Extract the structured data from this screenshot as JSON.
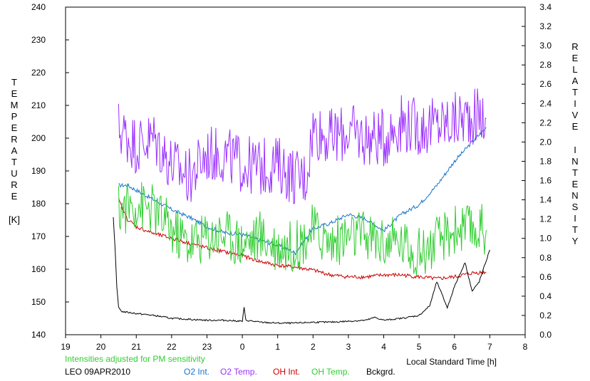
{
  "chart_data": {
    "type": "line",
    "x_range": [
      19,
      8
    ],
    "x_ticks": [
      "19",
      "20",
      "21",
      "22",
      "23",
      "0",
      "1",
      "2",
      "3",
      "4",
      "5",
      "6",
      "7",
      "8"
    ],
    "x_label": "Local Standard Time [h]",
    "left_axis": {
      "label_letters": [
        "T",
        "E",
        "M",
        "P",
        "E",
        "R",
        "A",
        "T",
        "U",
        "R",
        "E"
      ],
      "unit": "[K]",
      "range": [
        140,
        240
      ],
      "ticks": [
        "140",
        "150",
        "160",
        "170",
        "180",
        "190",
        "200",
        "210",
        "220",
        "230",
        "240"
      ]
    },
    "right_axis": {
      "label_letters_1": [
        "R",
        "E",
        "L",
        "A",
        "T",
        "I",
        "V",
        "E"
      ],
      "label_letters_2": [
        "I",
        "N",
        "T",
        "E",
        "N",
        "S",
        "I",
        "T",
        "Y"
      ],
      "range": [
        0.0,
        3.4
      ],
      "ticks": [
        "0.0",
        "0.2",
        "0.4",
        "0.6",
        "0.8",
        "1.0",
        "1.2",
        "1.4",
        "1.6",
        "1.8",
        "2.0",
        "2.2",
        "2.4",
        "2.6",
        "2.8",
        "3.0",
        "3.2",
        "3.4"
      ]
    },
    "note": "Intensities adjusted for PM sensitivity",
    "station": "LEO 09APR2010",
    "series": [
      {
        "name": "O2 Int.",
        "axis": "right",
        "color": "#1874cd",
        "x": [
          20.5,
          20.75,
          21.0,
          21.5,
          22.0,
          22.5,
          23.0,
          23.5,
          24.0,
          24.5,
          25.0,
          25.5,
          26.0,
          26.5,
          27.0,
          27.5,
          28.0,
          28.5,
          29.0,
          29.5,
          30.0,
          30.5,
          30.9
        ],
        "y": [
          1.55,
          1.55,
          1.5,
          1.4,
          1.3,
          1.22,
          1.12,
          1.06,
          1.04,
          0.98,
          0.93,
          0.85,
          1.1,
          1.16,
          1.25,
          1.2,
          1.08,
          1.25,
          1.35,
          1.55,
          1.8,
          2.0,
          2.15
        ]
      },
      {
        "name": "O2 Temp.",
        "axis": "left",
        "color": "#9b30ff",
        "x": [
          20.5,
          21.0,
          21.5,
          22.0,
          22.5,
          23.0,
          23.5,
          24.0,
          24.5,
          25.0,
          25.5,
          25.8,
          26.0,
          26.5,
          27.0,
          27.5,
          28.0,
          28.5,
          29.0,
          29.5,
          30.0,
          30.5,
          30.9
        ],
        "y": [
          203,
          198,
          200,
          192,
          188,
          195,
          195,
          192,
          191,
          192,
          188,
          188,
          203,
          200,
          202,
          200,
          200,
          205,
          203,
          204,
          205,
          207,
          206
        ]
      },
      {
        "name": "OH Int.",
        "axis": "right",
        "color": "#cd0000",
        "x": [
          20.5,
          20.75,
          21.0,
          21.5,
          22.0,
          22.5,
          23.0,
          23.5,
          24.0,
          24.5,
          25.0,
          25.5,
          26.0,
          26.5,
          27.0,
          27.5,
          28.0,
          28.5,
          29.0,
          29.5,
          30.0,
          30.5,
          30.9
        ],
        "y": [
          1.4,
          1.2,
          1.12,
          1.05,
          1.0,
          0.95,
          0.9,
          0.86,
          0.82,
          0.76,
          0.72,
          0.7,
          0.67,
          0.62,
          0.6,
          0.6,
          0.62,
          0.62,
          0.6,
          0.58,
          0.6,
          0.64,
          0.65
        ]
      },
      {
        "name": "OH Temp.",
        "axis": "left",
        "color": "#32cd32",
        "x": [
          20.5,
          21.0,
          21.5,
          22.0,
          22.5,
          23.0,
          23.5,
          24.0,
          24.5,
          25.0,
          25.5,
          26.0,
          26.5,
          27.0,
          27.5,
          28.0,
          28.5,
          29.0,
          29.5,
          30.0,
          30.5,
          30.9
        ],
        "y": [
          178,
          180,
          178,
          172,
          168,
          170,
          171,
          168,
          170,
          167,
          167,
          172,
          168,
          170,
          170,
          168,
          168,
          165,
          168,
          172,
          172,
          172
        ]
      },
      {
        "name": "Bckgrd.",
        "axis": "right",
        "color": "#000000",
        "x": [
          20.35,
          20.4,
          20.45,
          20.5,
          20.6,
          21.0,
          21.5,
          22.0,
          22.5,
          23.0,
          23.5,
          24.0,
          24.05,
          24.1,
          24.5,
          25.0,
          25.5,
          26.0,
          26.5,
          27.0,
          27.5,
          27.75,
          28.0,
          28.5,
          29.0,
          29.3,
          29.5,
          29.8,
          30.0,
          30.3,
          30.5,
          30.7,
          31.0
        ],
        "y": [
          1.22,
          0.9,
          0.5,
          0.28,
          0.24,
          0.22,
          0.2,
          0.17,
          0.16,
          0.15,
          0.15,
          0.14,
          0.28,
          0.15,
          0.13,
          0.12,
          0.12,
          0.13,
          0.13,
          0.14,
          0.15,
          0.18,
          0.15,
          0.17,
          0.2,
          0.3,
          0.55,
          0.28,
          0.5,
          0.75,
          0.45,
          0.55,
          0.88
        ]
      }
    ],
    "legend_position": "bottom"
  }
}
